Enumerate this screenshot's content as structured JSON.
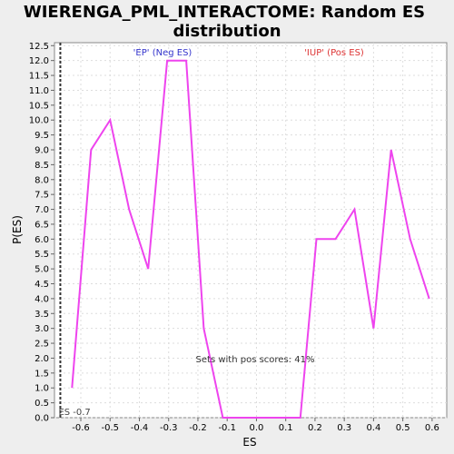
{
  "chart_data": {
    "type": "line",
    "title_line1": "WIERENGA_PML_INTERACTOME: Random ES",
    "title_line2": "distribution",
    "xlabel": "ES",
    "ylabel": "P(ES)",
    "xlim": [
      -0.69,
      0.65
    ],
    "ylim": [
      0,
      12.6
    ],
    "x_ticks": [
      "-0.6",
      "-0.5",
      "-0.4",
      "-0.3",
      "-0.2",
      "-0.1",
      "0.0",
      "0.1",
      "0.2",
      "0.3",
      "0.4",
      "0.5",
      "0.6"
    ],
    "y_ticks": [
      "0.0",
      "0.5",
      "1.0",
      "1.5",
      "2.0",
      "2.5",
      "3.0",
      "3.5",
      "4.0",
      "4.5",
      "5.0",
      "5.5",
      "6.0",
      "6.5",
      "7.0",
      "7.5",
      "8.0",
      "8.5",
      "9.0",
      "9.5",
      "10.0",
      "10.5",
      "11.0",
      "11.5",
      "12.0",
      "12.5"
    ],
    "grid": true,
    "series": [
      {
        "color": "#ee44ee",
        "x": [
          -0.63,
          -0.565,
          -0.5,
          -0.435,
          -0.37,
          -0.305,
          -0.24,
          -0.18,
          -0.115,
          0.15,
          0.205,
          0.27,
          0.335,
          0.4,
          0.46,
          0.525,
          0.59
        ],
        "y": [
          1,
          9,
          10,
          7,
          5,
          12,
          12,
          3,
          0,
          0,
          6,
          6,
          7,
          3,
          9,
          6,
          4
        ]
      }
    ],
    "vline": {
      "x": -0.67,
      "label": "ES -0.7"
    },
    "annotations": {
      "neg_label": "'EP' (Neg ES)",
      "neg_color": "#3333cc",
      "pos_label": "'IUP' (Pos ES)",
      "pos_color": "#dd3333",
      "pos_scores": "Sets with pos scores: 41%"
    }
  }
}
